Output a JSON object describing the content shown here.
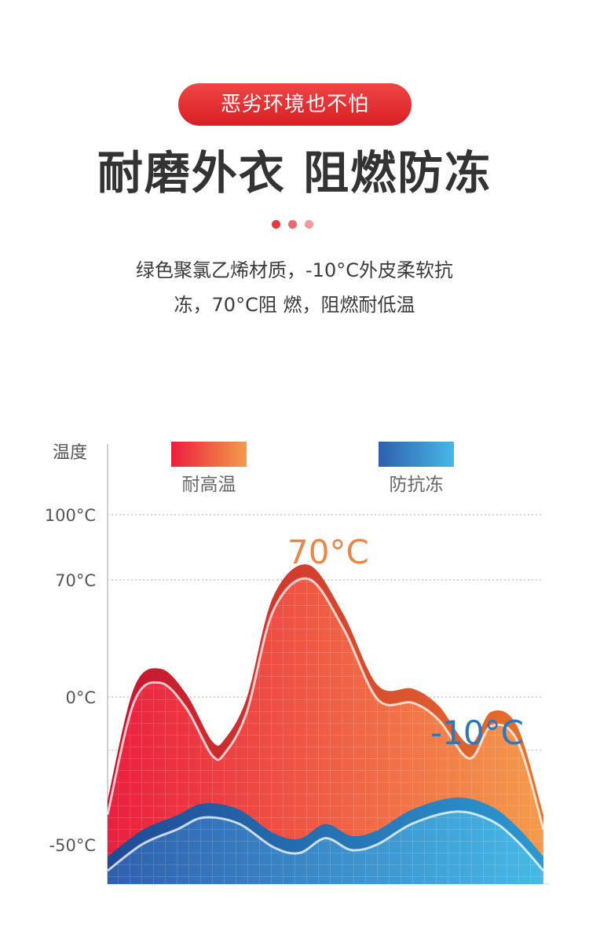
{
  "header": {
    "badge": "恶劣环境也不怕",
    "headline": "耐磨外衣 阻燃防冻",
    "description_line1": "绿色聚氯乙烯材质，-10°C外皮柔软抗",
    "description_line2": "冻，70°C阻 燃，阻燃耐低温"
  },
  "colors": {
    "accent": "#d92b2b",
    "heat_start": "#ea1f3f",
    "heat_end": "#f49b4b",
    "cold_start": "#2f5fad",
    "cold_end": "#46b9e5",
    "label_70": "#e8874a",
    "label_minus10": "#2e77b8"
  },
  "chart_data": {
    "type": "area",
    "ylabel": "温度",
    "y_ticks": [
      {
        "value": 100,
        "label": "100°C"
      },
      {
        "value": 70,
        "label": "70°C"
      },
      {
        "value": 0,
        "label": "0°C"
      },
      {
        "value": -50,
        "label": "-50°C"
      }
    ],
    "ylim": [
      -60,
      115
    ],
    "grid": true,
    "legend": [
      {
        "name": "耐高温",
        "color_from": "#ea1f3f",
        "color_to": "#f49b4b"
      },
      {
        "name": "防抗冻",
        "color_from": "#2f5fad",
        "color_to": "#46b9e5"
      }
    ],
    "legend_position": "top",
    "annotations": [
      {
        "text": "70°C",
        "series": "耐高温"
      },
      {
        "text": "-10°C",
        "series": "防抗冻"
      }
    ],
    "series": [
      {
        "name": "耐高温",
        "x": [
          0,
          6,
          12,
          18,
          24,
          27,
          32,
          38,
          46,
          54,
          62,
          70,
          76,
          83,
          88,
          94,
          100
        ],
        "values": [
          -35,
          5,
          17,
          2,
          -15,
          -14,
          0,
          60,
          77,
          50,
          7,
          5,
          -3,
          -16,
          -5,
          -10,
          -40
        ]
      },
      {
        "name": "防抗冻",
        "x": [
          0,
          8,
          16,
          22,
          30,
          38,
          44,
          50,
          56,
          62,
          70,
          80,
          88,
          94,
          100
        ],
        "values": [
          -55,
          -45,
          -40,
          -36,
          -38,
          -46,
          -48,
          -43,
          -47,
          -45,
          -38,
          -34,
          -37,
          -44,
          -55
        ]
      }
    ]
  }
}
